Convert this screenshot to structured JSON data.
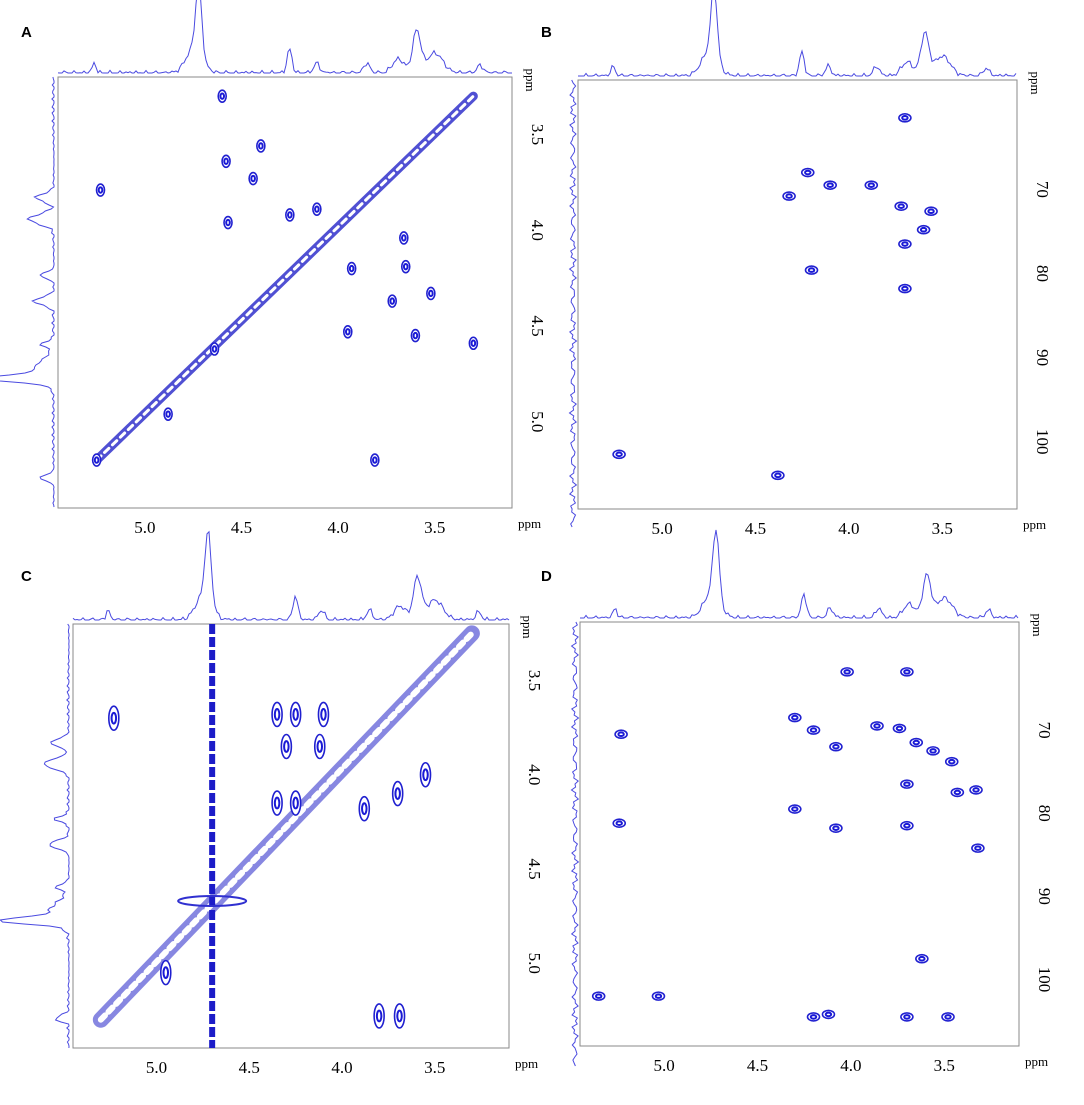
{
  "figure": {
    "panels": [
      "A",
      "B",
      "C",
      "D"
    ]
  },
  "chart_data": [
    {
      "panel": "A",
      "type": "scatter",
      "xlabel": "ppm",
      "ylabel": "ppm",
      "xlim": [
        5.45,
        3.1
      ],
      "ylim": [
        3.2,
        5.45
      ],
      "xticks": [
        "5.0",
        "4.5",
        "4.0",
        "3.5"
      ],
      "yticks": [
        "3.5",
        "4.0",
        "4.5",
        "5.0"
      ],
      "peaks": [
        {
          "x": 5.23,
          "y": 3.79
        },
        {
          "x": 4.6,
          "y": 3.3
        },
        {
          "x": 4.58,
          "y": 3.64
        },
        {
          "x": 4.4,
          "y": 3.56
        },
        {
          "x": 4.44,
          "y": 3.73
        },
        {
          "x": 4.57,
          "y": 3.96
        },
        {
          "x": 4.25,
          "y": 3.92
        },
        {
          "x": 4.11,
          "y": 3.89
        },
        {
          "x": 3.93,
          "y": 4.2
        },
        {
          "x": 3.66,
          "y": 4.04
        },
        {
          "x": 3.65,
          "y": 4.19
        },
        {
          "x": 3.72,
          "y": 4.37
        },
        {
          "x": 3.52,
          "y": 4.33
        },
        {
          "x": 3.95,
          "y": 4.53
        },
        {
          "x": 3.6,
          "y": 4.55
        },
        {
          "x": 3.3,
          "y": 4.59
        },
        {
          "x": 4.88,
          "y": 4.96
        },
        {
          "x": 3.81,
          "y": 5.2
        },
        {
          "x": 5.25,
          "y": 5.2
        },
        {
          "x": 4.64,
          "y": 4.62
        }
      ],
      "diagonal": {
        "from": [
          5.25,
          5.2
        ],
        "to": [
          3.3,
          3.3
        ]
      }
    },
    {
      "panel": "B",
      "type": "scatter",
      "xlabel": "ppm",
      "ylabel": "ppm",
      "xlim": [
        5.45,
        3.1
      ],
      "ylim": [
        57,
        108
      ],
      "xticks": [
        "5.0",
        "4.5",
        "4.0",
        "3.5"
      ],
      "yticks": [
        "70",
        "80",
        "90",
        "100"
      ],
      "peaks": [
        {
          "x": 3.7,
          "y": 61.5
        },
        {
          "x": 4.22,
          "y": 68.0
        },
        {
          "x": 4.1,
          "y": 69.5
        },
        {
          "x": 3.88,
          "y": 69.5
        },
        {
          "x": 4.32,
          "y": 70.8
        },
        {
          "x": 3.72,
          "y": 72.0
        },
        {
          "x": 3.56,
          "y": 72.6
        },
        {
          "x": 3.6,
          "y": 74.8
        },
        {
          "x": 3.7,
          "y": 76.5
        },
        {
          "x": 4.2,
          "y": 79.6
        },
        {
          "x": 3.7,
          "y": 81.8
        },
        {
          "x": 5.23,
          "y": 101.5
        },
        {
          "x": 4.38,
          "y": 104.0
        }
      ]
    },
    {
      "panel": "C",
      "type": "scatter",
      "xlabel": "ppm",
      "ylabel": "ppm",
      "xlim": [
        5.45,
        3.1
      ],
      "ylim": [
        3.2,
        5.45
      ],
      "xticks": [
        "5.0",
        "4.5",
        "4.0",
        "3.5"
      ],
      "yticks": [
        "3.5",
        "4.0",
        "4.5",
        "5.0"
      ],
      "peaks": [
        {
          "x": 5.23,
          "y": 3.7
        },
        {
          "x": 4.35,
          "y": 3.68
        },
        {
          "x": 4.25,
          "y": 3.68
        },
        {
          "x": 4.1,
          "y": 3.68
        },
        {
          "x": 4.3,
          "y": 3.85
        },
        {
          "x": 4.12,
          "y": 3.85
        },
        {
          "x": 4.35,
          "y": 4.15
        },
        {
          "x": 4.25,
          "y": 4.15
        },
        {
          "x": 3.88,
          "y": 4.18
        },
        {
          "x": 3.7,
          "y": 4.1
        },
        {
          "x": 3.55,
          "y": 4.0
        },
        {
          "x": 3.8,
          "y": 5.28
        },
        {
          "x": 3.69,
          "y": 5.28
        },
        {
          "x": 4.95,
          "y": 5.05
        }
      ],
      "diagonal": {
        "from": [
          5.3,
          5.3
        ],
        "to": [
          3.3,
          3.25
        ]
      },
      "vertical_line_x": 4.7
    },
    {
      "panel": "D",
      "type": "scatter",
      "xlabel": "ppm",
      "ylabel": "ppm",
      "xlim": [
        5.45,
        3.1
      ],
      "ylim": [
        57,
        108
      ],
      "xticks": [
        "5.0",
        "4.5",
        "4.0",
        "3.5"
      ],
      "yticks": [
        "70",
        "80",
        "90",
        "100"
      ],
      "peaks": [
        {
          "x": 5.23,
          "y": 70.5
        },
        {
          "x": 4.3,
          "y": 68.5
        },
        {
          "x": 4.2,
          "y": 70.0
        },
        {
          "x": 4.08,
          "y": 72.0
        },
        {
          "x": 4.02,
          "y": 63.0
        },
        {
          "x": 3.7,
          "y": 63.0
        },
        {
          "x": 3.86,
          "y": 69.5
        },
        {
          "x": 3.74,
          "y": 69.8
        },
        {
          "x": 3.65,
          "y": 71.5
        },
        {
          "x": 3.56,
          "y": 72.5
        },
        {
          "x": 3.46,
          "y": 73.8
        },
        {
          "x": 3.43,
          "y": 77.5
        },
        {
          "x": 3.33,
          "y": 77.2
        },
        {
          "x": 3.7,
          "y": 76.5
        },
        {
          "x": 4.3,
          "y": 79.5
        },
        {
          "x": 4.08,
          "y": 81.8
        },
        {
          "x": 3.7,
          "y": 81.5
        },
        {
          "x": 3.32,
          "y": 84.2
        },
        {
          "x": 5.24,
          "y": 81.2
        },
        {
          "x": 3.62,
          "y": 97.5
        },
        {
          "x": 4.2,
          "y": 104.5
        },
        {
          "x": 3.7,
          "y": 104.5
        },
        {
          "x": 3.48,
          "y": 104.5
        },
        {
          "x": 5.35,
          "y": 102.0
        },
        {
          "x": 5.03,
          "y": 102.0
        },
        {
          "x": 4.12,
          "y": 104.2
        }
      ]
    }
  ]
}
